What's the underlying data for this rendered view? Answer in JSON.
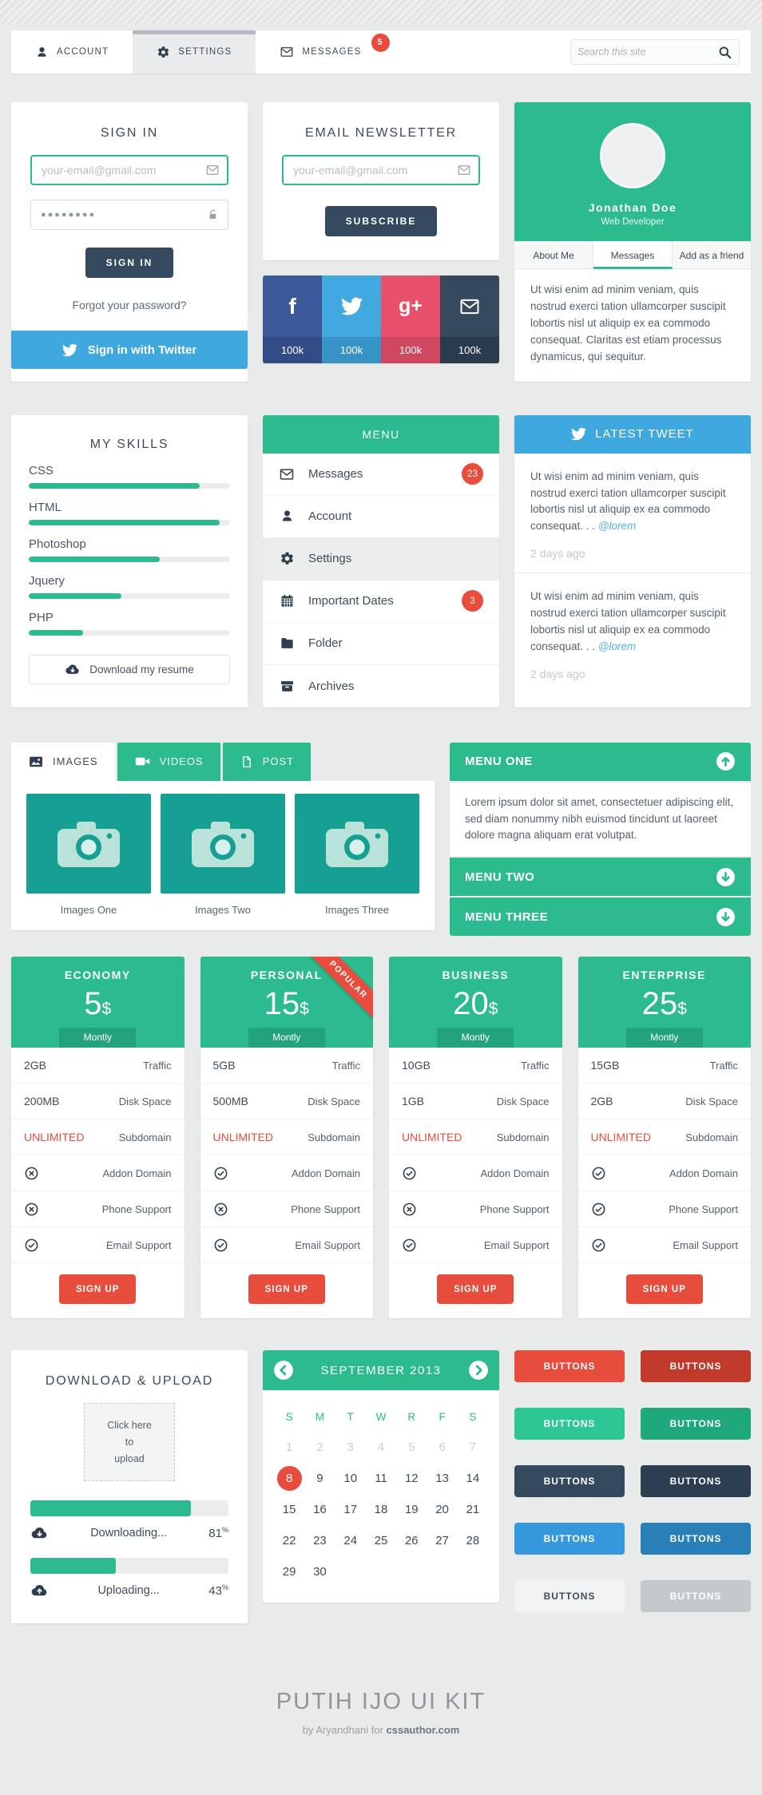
{
  "nav": {
    "items": [
      {
        "label": "ACCOUNT"
      },
      {
        "label": "SETTINGS"
      },
      {
        "label": "MESSAGES",
        "badge": "5"
      }
    ],
    "search_placeholder": "Search this site"
  },
  "signin": {
    "title": "SIGN IN",
    "email_placeholder": "your-email@gmail.com",
    "password_value": "●●●●●●●●",
    "button": "SIGN IN",
    "forgot": "Forgot your password?",
    "twitter": "Sign in with Twitter"
  },
  "newsletter": {
    "title": "EMAIL NEWSLETTER",
    "email_placeholder": "your-email@gmail.com",
    "button": "SUBSCRIBE"
  },
  "social": {
    "tiles": [
      {
        "name": "facebook",
        "count": "100k",
        "bg": "#3b5998",
        "strip": "#334c86"
      },
      {
        "name": "twitter",
        "count": "100k",
        "bg": "#41a9e0",
        "strip": "#3793c5"
      },
      {
        "name": "google-plus",
        "count": "100k",
        "bg": "#e8506b",
        "strip": "#d0485f"
      },
      {
        "name": "mail",
        "count": "100k",
        "bg": "#34495e",
        "strip": "#2a3b4d"
      }
    ]
  },
  "profile": {
    "name": "Jonathan Doe",
    "role": "Web Developer",
    "tabs": [
      {
        "label": "About Me"
      },
      {
        "label": "Messages"
      },
      {
        "label": "Add as a friend"
      }
    ],
    "bio": "Ut wisi enim ad minim veniam, quis nostrud exerci tation ullamcorper suscipit lobortis nisl ut aliquip ex ea commodo consequat. Claritas est etiam processus dynamicus, qui sequitur."
  },
  "skills": {
    "title": "MY SKILLS",
    "items": [
      {
        "label": "CSS",
        "pct": 85
      },
      {
        "label": "HTML",
        "pct": 95
      },
      {
        "label": "Photoshop",
        "pct": 65
      },
      {
        "label": "Jquery",
        "pct": 46
      },
      {
        "label": "PHP",
        "pct": 27
      }
    ],
    "download_label": "Download my resume"
  },
  "menu": {
    "title": "MENU",
    "items": [
      {
        "label": "Messages",
        "badge": "23"
      },
      {
        "label": "Account"
      },
      {
        "label": "Settings"
      },
      {
        "label": "Important Dates",
        "badge": "3"
      },
      {
        "label": "Folder"
      },
      {
        "label": "Archives"
      }
    ]
  },
  "tweets": {
    "header": "LATEST TWEET",
    "items": [
      {
        "text": "Ut wisi enim ad minim veniam, quis nostrud exerci tation ullamcorper suscipit lobortis nisl ut aliquip ex ea commodo consequat. . .",
        "handle": "@lorem",
        "time": "2 days ago"
      },
      {
        "text": "Ut wisi enim ad minim veniam, quis nostrud exerci tation ullamcorper suscipit lobortis nisl ut aliquip ex ea commodo consequat. . .",
        "handle": "@lorem",
        "time": "2 days ago"
      }
    ]
  },
  "media": {
    "tabs": [
      {
        "label": "IMAGES"
      },
      {
        "label": "VIDEOS"
      },
      {
        "label": "POST"
      }
    ],
    "tiles": [
      {
        "caption": "Images One"
      },
      {
        "caption": "Images Two"
      },
      {
        "caption": "Images Three"
      }
    ]
  },
  "accordion": {
    "sections": [
      {
        "label": "MENU ONE",
        "open": true,
        "content": "Lorem ipsum dolor sit amet, consectetuer adipiscing elit, sed diam nonummy nibh euismod tincidunt ut laoreet dolore magna aliquam erat volutpat."
      },
      {
        "label": "MENU TWO",
        "open": false
      },
      {
        "label": "MENU THREE",
        "open": false
      }
    ]
  },
  "pricing": {
    "currency": "$",
    "ribbon": "POPULAR",
    "plans": [
      {
        "name": "ECONOMY",
        "price": "5",
        "period": "Montly",
        "popular": false,
        "specs": [
          {
            "value": "2GB",
            "label": "Traffic",
            "red": false
          },
          {
            "value": "200MB",
            "label": "Disk Space",
            "red": false
          },
          {
            "value": "UNLIMITED",
            "label": "Subdomain",
            "red": true
          }
        ],
        "features": [
          {
            "ok": false,
            "label": "Addon Domain"
          },
          {
            "ok": false,
            "label": "Phone Support"
          },
          {
            "ok": true,
            "label": "Email Support"
          }
        ],
        "cta": "SIGN UP"
      },
      {
        "name": "PERSONAL",
        "price": "15",
        "period": "Montly",
        "popular": true,
        "specs": [
          {
            "value": "5GB",
            "label": "Traffic",
            "red": false
          },
          {
            "value": "500MB",
            "label": "Disk Space",
            "red": false
          },
          {
            "value": "UNLIMITED",
            "label": "Subdomain",
            "red": true
          }
        ],
        "features": [
          {
            "ok": true,
            "label": "Addon Domain"
          },
          {
            "ok": false,
            "label": "Phone Support"
          },
          {
            "ok": true,
            "label": "Email Support"
          }
        ],
        "cta": "SIGN UP"
      },
      {
        "name": "BUSINESS",
        "price": "20",
        "period": "Montly",
        "popular": false,
        "specs": [
          {
            "value": "10GB",
            "label": "Traffic",
            "red": false
          },
          {
            "value": "1GB",
            "label": "Disk Space",
            "red": false
          },
          {
            "value": "UNLIMITED",
            "label": "Subdomain",
            "red": true
          }
        ],
        "features": [
          {
            "ok": true,
            "label": "Addon Domain"
          },
          {
            "ok": false,
            "label": "Phone Support"
          },
          {
            "ok": true,
            "label": "Email Support"
          }
        ],
        "cta": "SIGN UP"
      },
      {
        "name": "ENTERPRISE",
        "price": "25",
        "period": "Montly",
        "popular": false,
        "specs": [
          {
            "value": "15GB",
            "label": "Traffic",
            "red": false
          },
          {
            "value": "2GB",
            "label": "Disk Space",
            "red": false
          },
          {
            "value": "UNLIMITED",
            "label": "Subdomain",
            "red": true
          }
        ],
        "features": [
          {
            "ok": true,
            "label": "Addon Domain"
          },
          {
            "ok": true,
            "label": "Phone Support"
          },
          {
            "ok": true,
            "label": "Email Support"
          }
        ],
        "cta": "SIGN UP"
      }
    ]
  },
  "download": {
    "title": "DOWNLOAD & UPLOAD",
    "upload_lines": [
      "Click here",
      "to",
      "upload"
    ],
    "bars": [
      {
        "label": "Downloading...",
        "pct": 81
      },
      {
        "label": "Uploading...",
        "pct": 43
      }
    ]
  },
  "calendar": {
    "title": "SEPTEMBER 2013",
    "dow": [
      "S",
      "M",
      "T",
      "W",
      "R",
      "F",
      "S"
    ],
    "days_in_month": 30,
    "muted_through": 7,
    "active_day": 8
  },
  "buttons": {
    "items": [
      {
        "label": "BUTTONS",
        "bg": "#e74c3c",
        "fg": "#ffffff"
      },
      {
        "label": "BUTTONS",
        "bg": "#c0392b",
        "fg": "#ffffff"
      },
      {
        "label": "BUTTONS",
        "bg": "#2cc795",
        "fg": "#ffffff"
      },
      {
        "label": "BUTTONS",
        "bg": "#1fa87c",
        "fg": "#ffffff"
      },
      {
        "label": "BUTTONS",
        "bg": "#34495e",
        "fg": "#ffffff"
      },
      {
        "label": "BUTTONS",
        "bg": "#2c3e50",
        "fg": "#ffffff"
      },
      {
        "label": "BUTTONS",
        "bg": "#3498db",
        "fg": "#ffffff"
      },
      {
        "label": "BUTTONS",
        "bg": "#2980b9",
        "fg": "#ffffff"
      },
      {
        "label": "BUTTONS",
        "bg": "#f2f4f4",
        "fg": "#3e4c59"
      },
      {
        "label": "BUTTONS",
        "bg": "#c3c9cc",
        "fg": "#ffffff"
      }
    ]
  },
  "footer": {
    "title": "PUTIH IJO UI KIT",
    "byline": "by Aryandhani for",
    "brand": "cssauthor.com"
  }
}
